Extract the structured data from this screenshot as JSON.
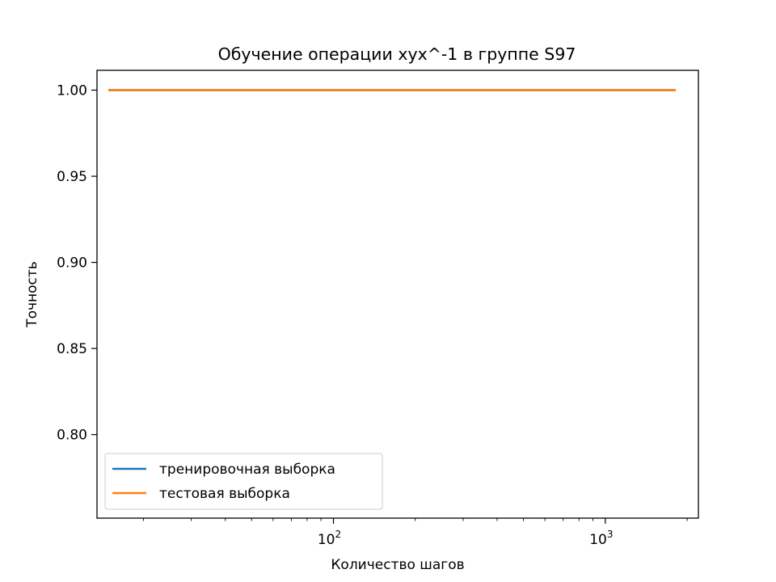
{
  "chart_data": {
    "type": "line",
    "title": "Обучение операции xyx^-1 в группе S97",
    "xlabel": "Количество шагов",
    "ylabel": "Точность",
    "xscale": "log",
    "xlim": [
      13.5,
      2200
    ],
    "ylim": [
      0.7515,
      1.0115
    ],
    "yticks": [
      0.8,
      0.85,
      0.9,
      0.95,
      1.0
    ],
    "ytick_labels": [
      "0.80",
      "0.85",
      "0.90",
      "0.95",
      "1.00"
    ],
    "xticks_major": [
      100,
      1000
    ],
    "xtick_labels": [
      {
        "base": "10",
        "exp": "2"
      },
      {
        "base": "10",
        "exp": "3"
      }
    ],
    "grid": false,
    "legend_position": "lower-left",
    "series": [
      {
        "name": "тренировочная выборка",
        "color": "#1f77b4",
        "x": [
          15,
          1800
        ],
        "values": [
          1.0,
          1.0
        ]
      },
      {
        "name": "тестовая выборка",
        "color": "#ff7f0e",
        "x": [
          15,
          1800
        ],
        "values": [
          1.0,
          1.0
        ]
      }
    ]
  }
}
